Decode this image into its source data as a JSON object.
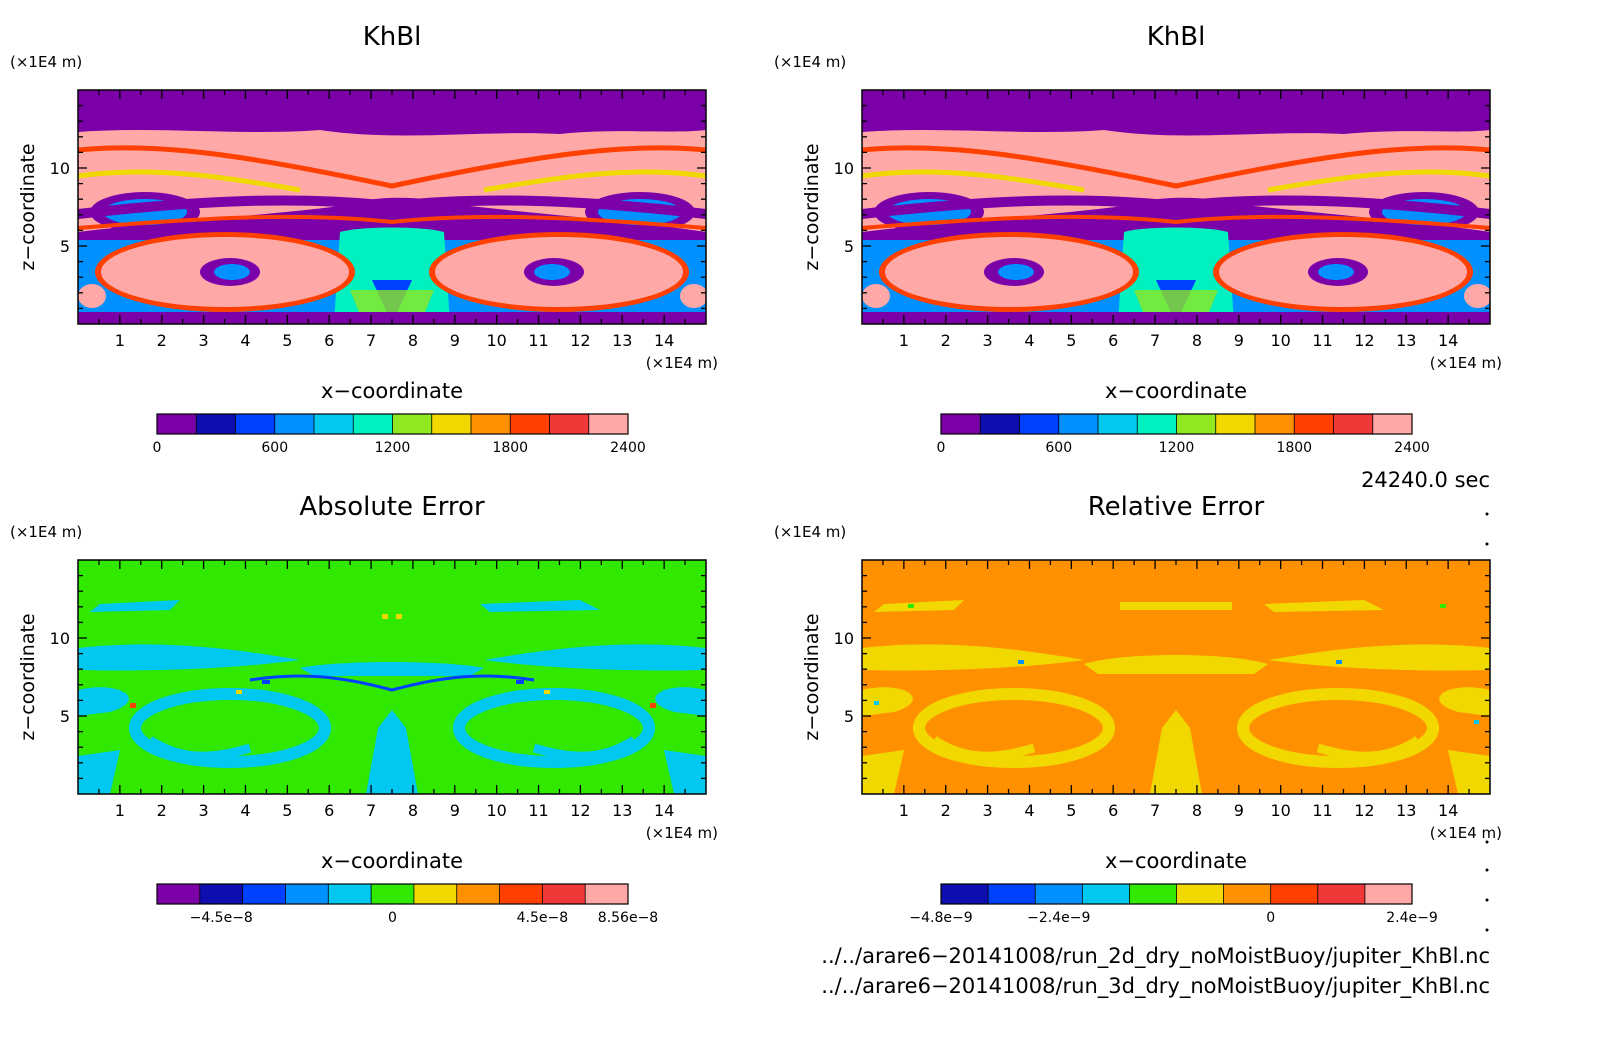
{
  "panels": [
    {
      "title": "KhBl",
      "unit_y": "(×1E4 m)",
      "unit_x": "(×1E4 m)",
      "xlabel": "x−coordinate",
      "ylabel": "z−coordinate",
      "colorbar": {
        "labels": [
          "0",
          "600",
          "1200",
          "1800",
          "2400"
        ],
        "colors": [
          "#7b00a8",
          "#0d0db0",
          "#0040ff",
          "#0090ff",
          "#00c8f0",
          "#00f0c0",
          "#90e820",
          "#f0d800",
          "#ff9000",
          "#ff4000",
          "#f03838",
          "#ffa8a8"
        ]
      }
    },
    {
      "title": "KhBl",
      "unit_y": "(×1E4 m)",
      "unit_x": "(×1E4 m)",
      "xlabel": "x−coordinate",
      "ylabel": "z−coordinate",
      "colorbar": {
        "labels": [
          "0",
          "600",
          "1200",
          "1800",
          "2400"
        ],
        "colors": [
          "#7b00a8",
          "#0d0db0",
          "#0040ff",
          "#0090ff",
          "#00c8f0",
          "#00f0c0",
          "#90e820",
          "#f0d800",
          "#ff9000",
          "#ff4000",
          "#f03838",
          "#ffa8a8"
        ]
      }
    },
    {
      "title": "Absolute Error",
      "unit_y": "(×1E4 m)",
      "unit_x": "(×1E4 m)",
      "xlabel": "x−coordinate",
      "ylabel": "z−coordinate",
      "colorbar": {
        "labels": [
          "−4.5e−8",
          "0",
          "4.5e−8",
          "8.56e−8"
        ],
        "colors": [
          "#7b00a8",
          "#0d0db0",
          "#0040ff",
          "#0090ff",
          "#00c8f0",
          "#30e800",
          "#f0d800",
          "#ff9000",
          "#ff4000",
          "#f03838",
          "#ffa8a8"
        ]
      }
    },
    {
      "title": "Relative Error",
      "unit_y": "(×1E4 m)",
      "unit_x": "(×1E4 m)",
      "xlabel": "x−coordinate",
      "ylabel": "z−coordinate",
      "colorbar": {
        "labels": [
          "−4.8e−9",
          "−2.4e−9",
          "0",
          "2.4e−9"
        ],
        "colors": [
          "#0d0db0",
          "#0040ff",
          "#0090ff",
          "#00c8f0",
          "#30e800",
          "#f0d800",
          "#ff9000",
          "#ff4000",
          "#f03838",
          "#ffa8a8"
        ]
      }
    }
  ],
  "time_label": "24240.0 sec",
  "file_paths": [
    "../../arare6−20141008/run_2d_dry_noMoistBuoy/jupiter_KhBl.nc",
    "../../arare6−20141008/run_3d_dry_noMoistBuoy/jupiter_KhBl.nc"
  ],
  "chart_data": [
    {
      "type": "heatmap",
      "title": "KhBl",
      "xlabel": "x−coordinate",
      "ylabel": "z−coordinate",
      "x_ticks": [
        1,
        2,
        3,
        4,
        5,
        6,
        7,
        8,
        9,
        10,
        11,
        12,
        13,
        14
      ],
      "y_ticks": [
        5,
        10
      ],
      "xlim": [
        0,
        15
      ],
      "ylim": [
        0,
        15
      ],
      "colorbar_range": [
        0,
        2400
      ],
      "colorbar_ticks": [
        0,
        600,
        1200,
        1800,
        2400
      ],
      "fill_colors": [
        "#7b00a8",
        "#ffa8a8",
        "#00f0c0"
      ]
    },
    {
      "type": "heatmap",
      "title": "KhBl",
      "xlabel": "x−coordinate",
      "ylabel": "z−coordinate",
      "x_ticks": [
        1,
        2,
        3,
        4,
        5,
        6,
        7,
        8,
        9,
        10,
        11,
        12,
        13,
        14
      ],
      "y_ticks": [
        5,
        10
      ],
      "xlim": [
        0,
        15
      ],
      "ylim": [
        0,
        15
      ],
      "colorbar_range": [
        0,
        2400
      ],
      "colorbar_ticks": [
        0,
        600,
        1200,
        1800,
        2400
      ],
      "fill_colors": [
        "#7b00a8",
        "#ffa8a8",
        "#00f0c0"
      ]
    },
    {
      "type": "heatmap",
      "title": "Absolute Error",
      "xlabel": "x−coordinate",
      "ylabel": "z−coordinate",
      "x_ticks": [
        1,
        2,
        3,
        4,
        5,
        6,
        7,
        8,
        9,
        10,
        11,
        12,
        13,
        14
      ],
      "y_ticks": [
        5,
        10
      ],
      "xlim": [
        0,
        15
      ],
      "ylim": [
        0,
        15
      ],
      "colorbar_ticks": [
        -4.5e-08,
        0,
        4.5e-08,
        8.56e-08
      ],
      "fill_colors": [
        "#30e800",
        "#00c8f0"
      ]
    },
    {
      "type": "heatmap",
      "title": "Relative Error",
      "xlabel": "x−coordinate",
      "ylabel": "z−coordinate",
      "x_ticks": [
        1,
        2,
        3,
        4,
        5,
        6,
        7,
        8,
        9,
        10,
        11,
        12,
        13,
        14
      ],
      "y_ticks": [
        5,
        10
      ],
      "xlim": [
        0,
        15
      ],
      "ylim": [
        0,
        15
      ],
      "colorbar_ticks": [
        -4.8e-09,
        -2.4e-09,
        0,
        2.4e-09
      ],
      "fill_colors": [
        "#ff9000",
        "#f0d800"
      ]
    }
  ]
}
